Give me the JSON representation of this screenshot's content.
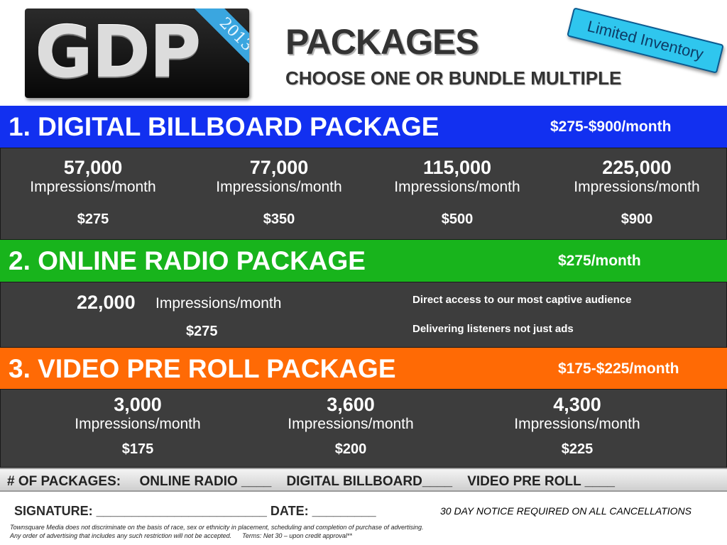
{
  "header": {
    "logo_text": "GDP",
    "logo_ribbon": "2013",
    "title": "PACKAGES",
    "subtitle": "CHOOSE ONE OR BUNDLE MULTIPLE",
    "stamp": "Limited Inventory"
  },
  "packages": {
    "billboard": {
      "title": "1. DIGITAL BILLBOARD PACKAGE",
      "price_range": "$275-$900/month",
      "tiers": [
        {
          "impressions": "57,000",
          "unit": "Impressions/month",
          "price": "$275"
        },
        {
          "impressions": "77,000",
          "unit": "Impressions/month",
          "price": "$350"
        },
        {
          "impressions": "115,000",
          "unit": "Impressions/month",
          "price": "$500"
        },
        {
          "impressions": "225,000",
          "unit": "Impressions/month",
          "price": "$900"
        }
      ]
    },
    "radio": {
      "title": "2. ONLINE RADIO PACKAGE",
      "price_range": "$275/month",
      "impressions": "22,000",
      "unit": "Impressions/month",
      "price": "$275",
      "notes": [
        "Direct access to our most captive audience",
        "Delivering listeners not just ads"
      ]
    },
    "video": {
      "title": "3. VIDEO PRE ROLL PACKAGE",
      "price_range": "$175-$225/month",
      "tiers": [
        {
          "impressions": "3,000",
          "unit": "Impressions/month",
          "price": "$175"
        },
        {
          "impressions": "3,600",
          "unit": "Impressions/month",
          "price": "$200"
        },
        {
          "impressions": "4,300",
          "unit": "Impressions/month",
          "price": "$225"
        }
      ]
    }
  },
  "footer": {
    "count_line": "# OF PACKAGES:     ONLINE RADIO ____    DIGITAL BILLBOARD____    VIDEO PRE ROLL ____",
    "signature_line": "SIGNATURE: ________________________ DATE: _________",
    "notice": "30 DAY NOTICE REQUIRED ON ALL CANCELLATIONS",
    "fine_print": [
      "Townsquare Media does not discriminate on the basis of race, sex or ethnicity in placement, scheduling and completion of purchase of advertising.",
      "Any order of advertising that includes any such restriction will not be accepted.      Terms: Net 30 – upon credit approval**"
    ]
  },
  "colors": {
    "billboard_band": "#1230f0",
    "radio_band": "#18b41c",
    "video_band": "#ff6a05",
    "panel": "#3d3d3d",
    "stamp": "#2fc6ee"
  }
}
